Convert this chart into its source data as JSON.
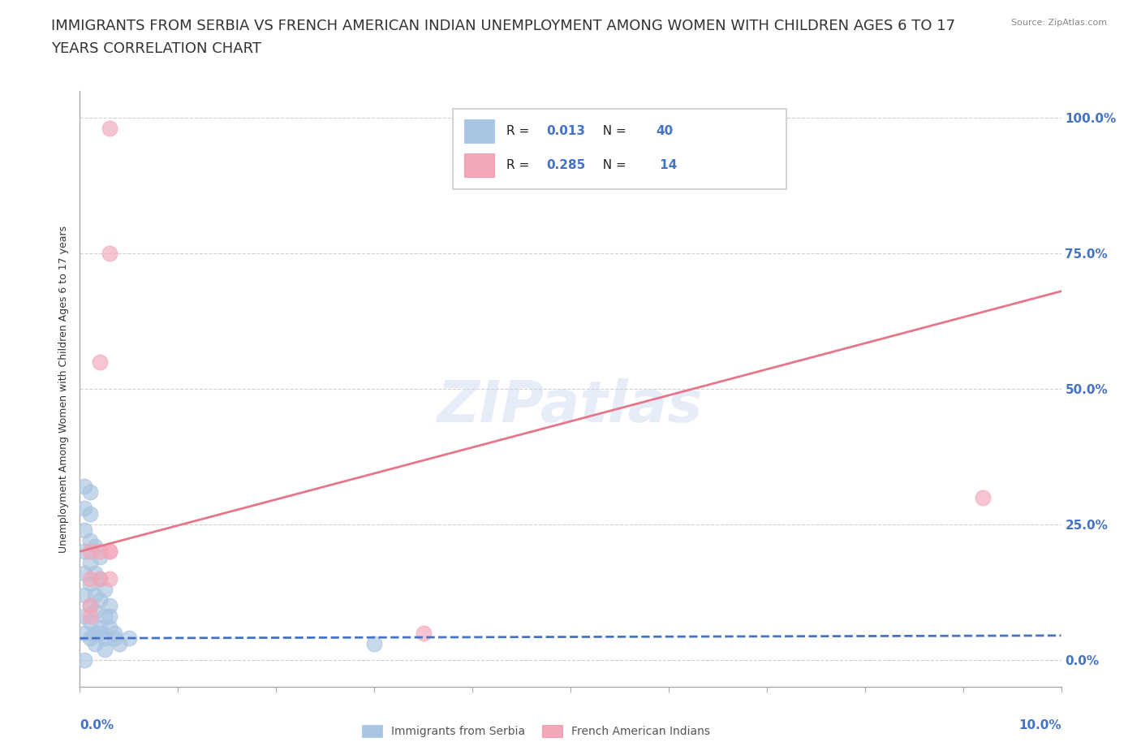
{
  "title_line1": "IMMIGRANTS FROM SERBIA VS FRENCH AMERICAN INDIAN UNEMPLOYMENT AMONG WOMEN WITH CHILDREN AGES 6 TO 17",
  "title_line2": "YEARS CORRELATION CHART",
  "source": "Source: ZipAtlas.com",
  "ylabel": "Unemployment Among Women with Children Ages 6 to 17 years",
  "ytick_values": [
    0.0,
    0.25,
    0.5,
    0.75,
    1.0
  ],
  "ytick_labels_right": [
    "0.0%",
    "25.0%",
    "50.0%",
    "75.0%",
    "100.0%"
  ],
  "xlim": [
    0.0,
    0.1
  ],
  "ylim": [
    -0.05,
    1.05
  ],
  "serbia_color": "#a8c4e0",
  "french_color": "#f4a7b9",
  "serbia_line_color": "#4472c4",
  "french_line_color": "#e8768a",
  "watermark_text": "ZIPatlas",
  "serbia_x": [
    0.0005,
    0.001,
    0.0015,
    0.002,
    0.0025,
    0.003,
    0.0035,
    0.004,
    0.005,
    0.0005,
    0.001,
    0.0015,
    0.002,
    0.0025,
    0.003,
    0.0035,
    0.0005,
    0.001,
    0.0015,
    0.002,
    0.0025,
    0.003,
    0.0005,
    0.001,
    0.0015,
    0.002,
    0.0025,
    0.0005,
    0.001,
    0.0015,
    0.002,
    0.0005,
    0.001,
    0.0015,
    0.0005,
    0.001,
    0.0005,
    0.001,
    0.03,
    0.0005
  ],
  "serbia_y": [
    0.05,
    0.04,
    0.03,
    0.05,
    0.02,
    0.06,
    0.04,
    0.03,
    0.04,
    0.08,
    0.07,
    0.05,
    0.06,
    0.04,
    0.08,
    0.05,
    0.12,
    0.1,
    0.09,
    0.11,
    0.08,
    0.1,
    0.16,
    0.14,
    0.12,
    0.15,
    0.13,
    0.2,
    0.18,
    0.16,
    0.19,
    0.24,
    0.22,
    0.21,
    0.28,
    0.27,
    0.32,
    0.31,
    0.03,
    0.0
  ],
  "french_x": [
    0.003,
    0.003,
    0.002,
    0.002,
    0.003,
    0.002,
    0.003,
    0.092,
    0.035,
    0.001,
    0.001,
    0.001,
    0.001,
    0.003
  ],
  "french_y": [
    0.98,
    0.75,
    0.55,
    0.2,
    0.2,
    0.15,
    0.15,
    0.3,
    0.05,
    0.2,
    0.15,
    0.1,
    0.08,
    0.2
  ],
  "serbia_trend_x": [
    0.0,
    0.1
  ],
  "serbia_trend_y": [
    0.04,
    0.045
  ],
  "french_trend_x": [
    0.0,
    0.1
  ],
  "french_trend_y": [
    0.2,
    0.68
  ],
  "grid_color": "#d0d0d0",
  "background_color": "#ffffff",
  "title_fontsize": 13,
  "axis_label_fontsize": 9,
  "tick_label_fontsize": 11,
  "legend_r1_R": "0.013",
  "legend_r1_N": "40",
  "legend_r2_R": "0.285",
  "legend_r2_N": "14"
}
